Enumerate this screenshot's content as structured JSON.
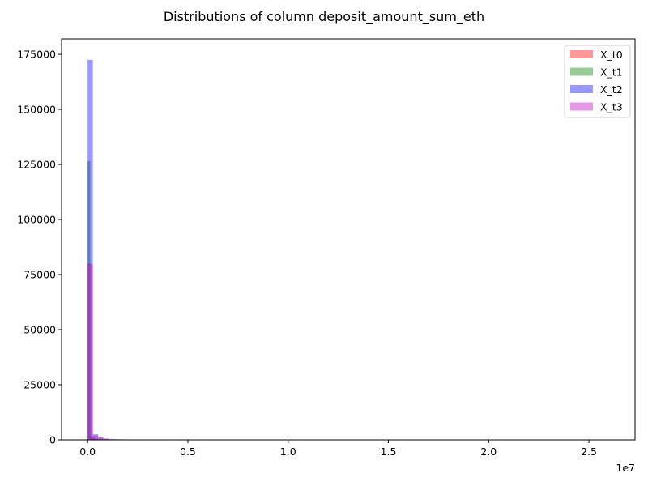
{
  "chart_data": {
    "type": "bar",
    "title": "Distributions of column deposit_amount_sum_eth",
    "xlabel": "",
    "ylabel": "",
    "x_offset_label": "1e7",
    "xlim": [
      -1300000,
      27300000
    ],
    "ylim": [
      0,
      182000
    ],
    "x_ticks": [
      {
        "value": 0,
        "label": "0.0"
      },
      {
        "value": 5000000,
        "label": "0.5"
      },
      {
        "value": 10000000,
        "label": "1.0"
      },
      {
        "value": 15000000,
        "label": "1.5"
      },
      {
        "value": 20000000,
        "label": "2.0"
      },
      {
        "value": 25000000,
        "label": "2.5"
      }
    ],
    "y_ticks": [
      {
        "value": 0,
        "label": "0"
      },
      {
        "value": 25000,
        "label": "25000"
      },
      {
        "value": 50000,
        "label": "50000"
      },
      {
        "value": 75000,
        "label": "75000"
      },
      {
        "value": 100000,
        "label": "100000"
      },
      {
        "value": 125000,
        "label": "125000"
      },
      {
        "value": 150000,
        "label": "150000"
      },
      {
        "value": 175000,
        "label": "175000"
      }
    ],
    "grid": false,
    "legend_position": "top-right",
    "series": [
      {
        "name": "X_t0",
        "color": "#ff0000",
        "opacity": 0.4,
        "bins": [
          {
            "x0": 0,
            "x1": 180000,
            "count": 80000
          },
          {
            "x0": 180000,
            "x1": 360000,
            "count": 1500
          },
          {
            "x0": 360000,
            "x1": 540000,
            "count": 500
          }
        ]
      },
      {
        "name": "X_t1",
        "color": "#008000",
        "opacity": 0.4,
        "bins": [
          {
            "x0": 0,
            "x1": 130000,
            "count": 126500
          },
          {
            "x0": 130000,
            "x1": 260000,
            "count": 1500
          },
          {
            "x0": 260000,
            "x1": 390000,
            "count": 600
          }
        ]
      },
      {
        "name": "X_t2",
        "color": "#0000ff",
        "opacity": 0.4,
        "bins": [
          {
            "x0": 0,
            "x1": 260000,
            "count": 172500
          },
          {
            "x0": 260000,
            "x1": 520000,
            "count": 2500
          },
          {
            "x0": 520000,
            "x1": 780000,
            "count": 1000
          },
          {
            "x0": 780000,
            "x1": 1040000,
            "count": 500
          }
        ]
      },
      {
        "name": "X_t3",
        "color": "#cc33cc",
        "opacity": 0.5,
        "bins": [
          {
            "x0": 0,
            "x1": 260000,
            "count": 79500
          },
          {
            "x0": 260000,
            "x1": 520000,
            "count": 2000
          },
          {
            "x0": 520000,
            "x1": 780000,
            "count": 1200
          },
          {
            "x0": 780000,
            "x1": 1040000,
            "count": 600
          },
          {
            "x0": 1040000,
            "x1": 1300000,
            "count": 400
          },
          {
            "x0": 1300000,
            "x1": 1560000,
            "count": 300
          },
          {
            "x0": 1560000,
            "x1": 1820000,
            "count": 250
          },
          {
            "x0": 1820000,
            "x1": 2080000,
            "count": 200
          },
          {
            "x0": 2080000,
            "x1": 2340000,
            "count": 150
          },
          {
            "x0": 2340000,
            "x1": 2600000,
            "count": 100
          },
          {
            "x0": 2600000,
            "x1": 2860000,
            "count": 100
          },
          {
            "x0": 3380000,
            "x1": 3640000,
            "count": 200
          },
          {
            "x0": 3640000,
            "x1": 3900000,
            "count": 150
          }
        ]
      }
    ]
  }
}
